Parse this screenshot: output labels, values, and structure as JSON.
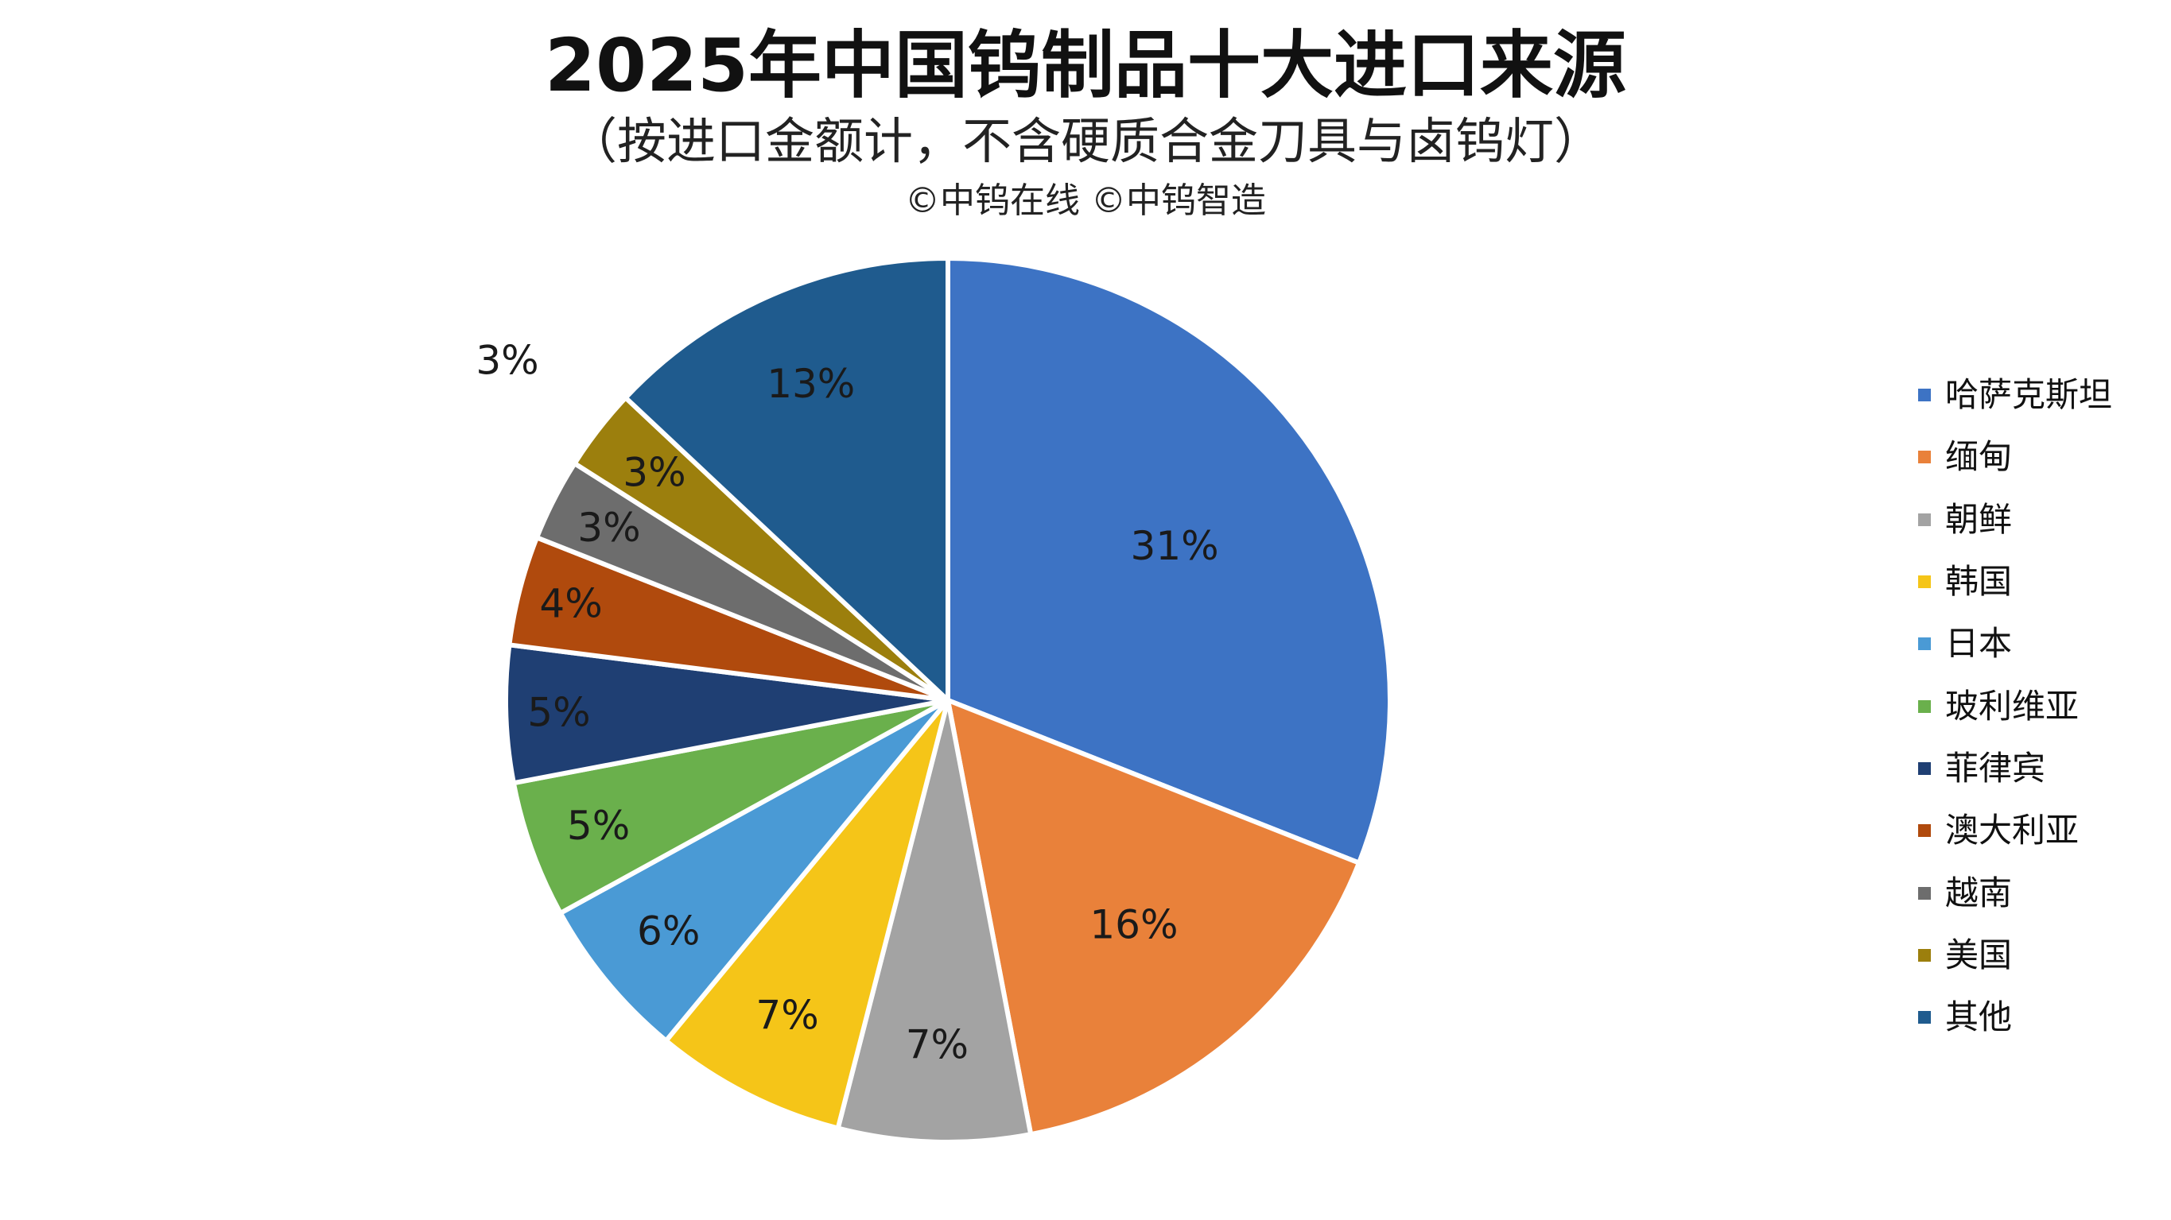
{
  "header": {
    "title": "2025年中国钨制品十大进口来源",
    "subtitle": "（按进口金额计，不含硬质合金刀具与卤钨灯）",
    "credit": "©中钨在线 ©中钨智造"
  },
  "chart_data": {
    "type": "pie",
    "title": "2025年中国钨制品十大进口来源",
    "subtitle": "（按进口金额计，不含硬质合金刀具与卤钨灯）",
    "categories": [
      "哈萨克斯坦",
      "缅甸",
      "朝鲜",
      "韩国",
      "日本",
      "玻利维亚",
      "菲律宾",
      "澳大利亚",
      "越南",
      "美国",
      "其他"
    ],
    "values": [
      31,
      16,
      7,
      7,
      6,
      5,
      5,
      4,
      3,
      3,
      13
    ],
    "labels": [
      "31%",
      "16%",
      "7%",
      "7%",
      "6%",
      "5%",
      "5%",
      "4%",
      "3%",
      "3%",
      "13%"
    ],
    "colors": [
      "#3d73c4",
      "#e9813a",
      "#a3a3a3",
      "#f5c518",
      "#4a9ad5",
      "#6ab04c",
      "#1f3f73",
      "#b04a0d",
      "#6d6d6d",
      "#9c7f0d",
      "#1f5b8e"
    ],
    "start": "12 o'clock",
    "direction": "clockwise",
    "legend_position": "right"
  }
}
